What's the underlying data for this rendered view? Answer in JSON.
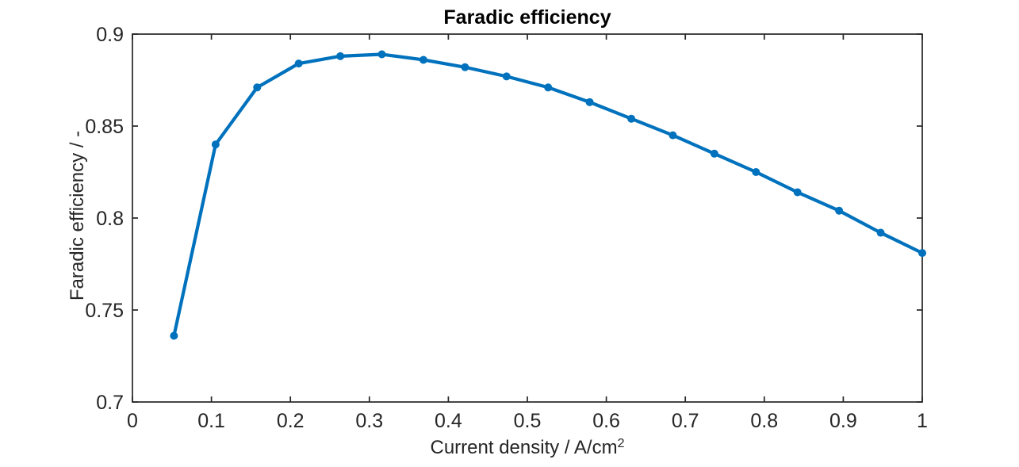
{
  "figure": {
    "title": "Faradic efficiency",
    "ylabel": "Faradic efficiency / -",
    "xlabel_prefix": "Current density / A/cm",
    "xlabel_superscript": "2"
  },
  "chart_data": {
    "type": "line",
    "title": "Faradic efficiency",
    "xlabel": "Current density / A/cm^2",
    "ylabel": "Faradic efficiency / -",
    "xlim": [
      0,
      1
    ],
    "ylim": [
      0.7,
      0.9
    ],
    "x_ticks": [
      0,
      0.1,
      0.2,
      0.3,
      0.4,
      0.5,
      0.6,
      0.7,
      0.8,
      0.9,
      1
    ],
    "x_tick_labels": [
      "0",
      "0.1",
      "0.2",
      "0.3",
      "0.4",
      "0.5",
      "0.6",
      "0.7",
      "0.8",
      "0.9",
      "1"
    ],
    "y_ticks": [
      0.7,
      0.75,
      0.8,
      0.85,
      0.9
    ],
    "y_tick_labels": [
      "0.7",
      "0.75",
      "0.8",
      "0.85",
      "0.9"
    ],
    "grid": false,
    "legend_position": "none",
    "box": true,
    "line_color": "#0072BD",
    "axis_color": "#262626",
    "title_color": "#000000",
    "series": [
      {
        "name": "Faradic efficiency",
        "marker": "dot",
        "x": [
          0.0526,
          0.1053,
          0.1579,
          0.2105,
          0.2632,
          0.3158,
          0.3684,
          0.4211,
          0.4737,
          0.5263,
          0.5789,
          0.6316,
          0.6842,
          0.7368,
          0.7895,
          0.8421,
          0.8947,
          0.9474,
          1.0
        ],
        "y": [
          0.736,
          0.84,
          0.871,
          0.884,
          0.888,
          0.889,
          0.886,
          0.882,
          0.877,
          0.871,
          0.863,
          0.854,
          0.845,
          0.835,
          0.825,
          0.814,
          0.804,
          0.792,
          0.781
        ]
      }
    ]
  }
}
